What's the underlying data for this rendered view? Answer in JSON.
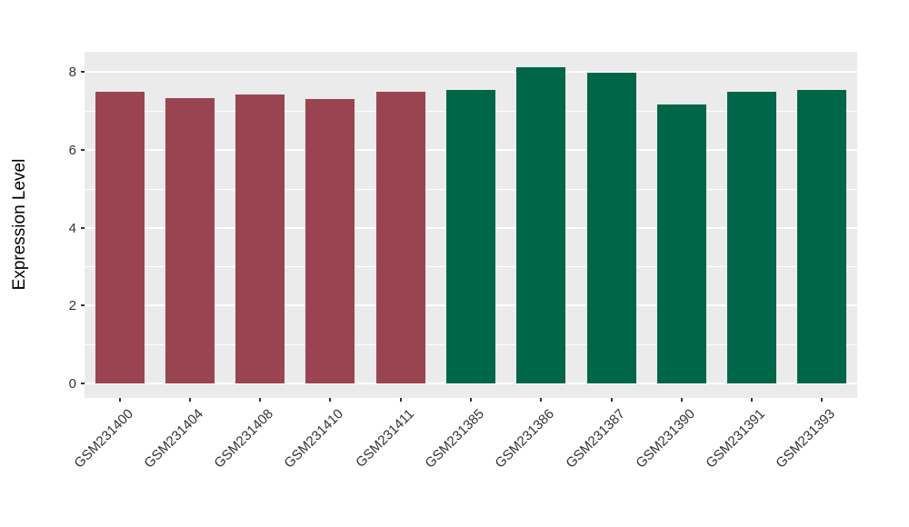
{
  "chart_data": {
    "type": "bar",
    "title": "",
    "xlabel": "",
    "ylabel": "Expression Level",
    "categories": [
      "GSM231400",
      "GSM231404",
      "GSM231408",
      "GSM231410",
      "GSM231411",
      "GSM231385",
      "GSM231386",
      "GSM231387",
      "GSM231390",
      "GSM231391",
      "GSM231393"
    ],
    "values": [
      7.5,
      7.33,
      7.42,
      7.31,
      7.5,
      7.54,
      8.13,
      7.98,
      7.16,
      7.48,
      7.54
    ],
    "bar_colors": [
      "#9A4452",
      "#9A4452",
      "#9A4452",
      "#9A4452",
      "#9A4452",
      "#006648",
      "#006648",
      "#006648",
      "#006648",
      "#006648",
      "#006648"
    ],
    "ylim": [
      -0.37,
      8.52
    ],
    "yticks": [
      0,
      2,
      4,
      6,
      8
    ],
    "yticks_minor": [
      1,
      3,
      5,
      7
    ],
    "grid": true,
    "legend": "none",
    "panel_background": "#EBEBEB",
    "grid_color": "#FFFFFF",
    "tick_label_color": "#333333",
    "axis_title_color": "#000000"
  }
}
